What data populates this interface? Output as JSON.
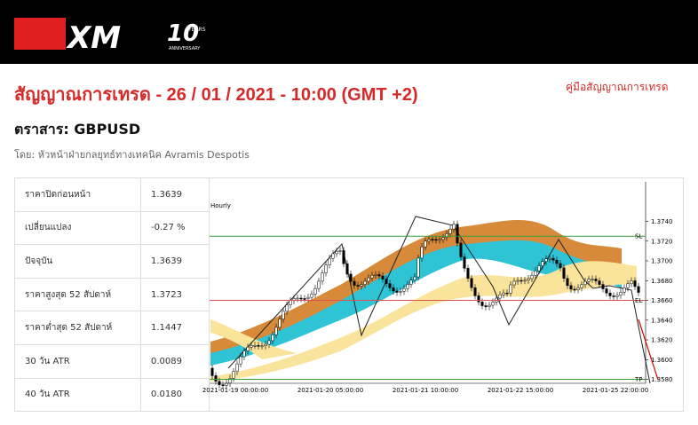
{
  "header": {
    "logo": "XM",
    "badge_number": "10",
    "badge_top": "YEARS",
    "badge_bottom": "ANNIVERSARY"
  },
  "page": {
    "title": "สัญญาณการเทรด - 26 / 01 / 2021 - 10:00 (GMT +2)",
    "guide_link": "คู่มือสัญญาณการเทรด",
    "instrument": "ตราสาร: GBPUSD",
    "author": "โดย: หัวหน้าฝ่ายกลยุทธ์ทางเทคนิค Avramis Despotis"
  },
  "table": {
    "rows": [
      [
        "ราคาปิดก่อนหน้า",
        "1.3639"
      ],
      [
        "เปลี่ยนแปลง",
        "-0.27 %"
      ],
      [
        "ปัจจุบัน",
        "1.3639"
      ],
      [
        "ราคาสูงสุด 52 สัปดาห์",
        "1.3723"
      ],
      [
        "ราคาต่ำสุด 52 สัปดาห์",
        "1.1447"
      ],
      [
        "30 วัน ATR",
        "0.0089"
      ],
      [
        "40 วัน ATR",
        "0.0180"
      ]
    ]
  },
  "chart_data": {
    "type": "levels",
    "title": "Hourly",
    "ylim": [
      1.3576,
      1.378
    ],
    "yticks": [
      {
        "value": 1.374,
        "label": "1.3740"
      },
      {
        "value": 1.372,
        "label": "1.3720"
      },
      {
        "value": 1.37,
        "label": "1.3700"
      },
      {
        "value": 1.368,
        "label": "1.3680"
      },
      {
        "value": 1.366,
        "label": "1.3660"
      },
      {
        "value": 1.364,
        "label": "1.3640"
      },
      {
        "value": 1.362,
        "label": "1.3620"
      },
      {
        "value": 1.36,
        "label": "1.3600"
      },
      {
        "value": 1.358,
        "label": "1.3580"
      }
    ],
    "xticks": [
      "2021-01-19 00:00:00",
      "2021-01-20 05:00:00",
      "2021-01-21 10:00:00",
      "2021-01-22 15:00:00",
      "2021-01-25 22:00:00"
    ],
    "levels": [
      {
        "name": "SL",
        "value": 1.3725,
        "color": "#3a9a3a"
      },
      {
        "name": "EL",
        "value": 1.366,
        "color": "#e05050"
      },
      {
        "name": "TP",
        "value": 1.358,
        "color": "#3a9a3a"
      }
    ]
  }
}
